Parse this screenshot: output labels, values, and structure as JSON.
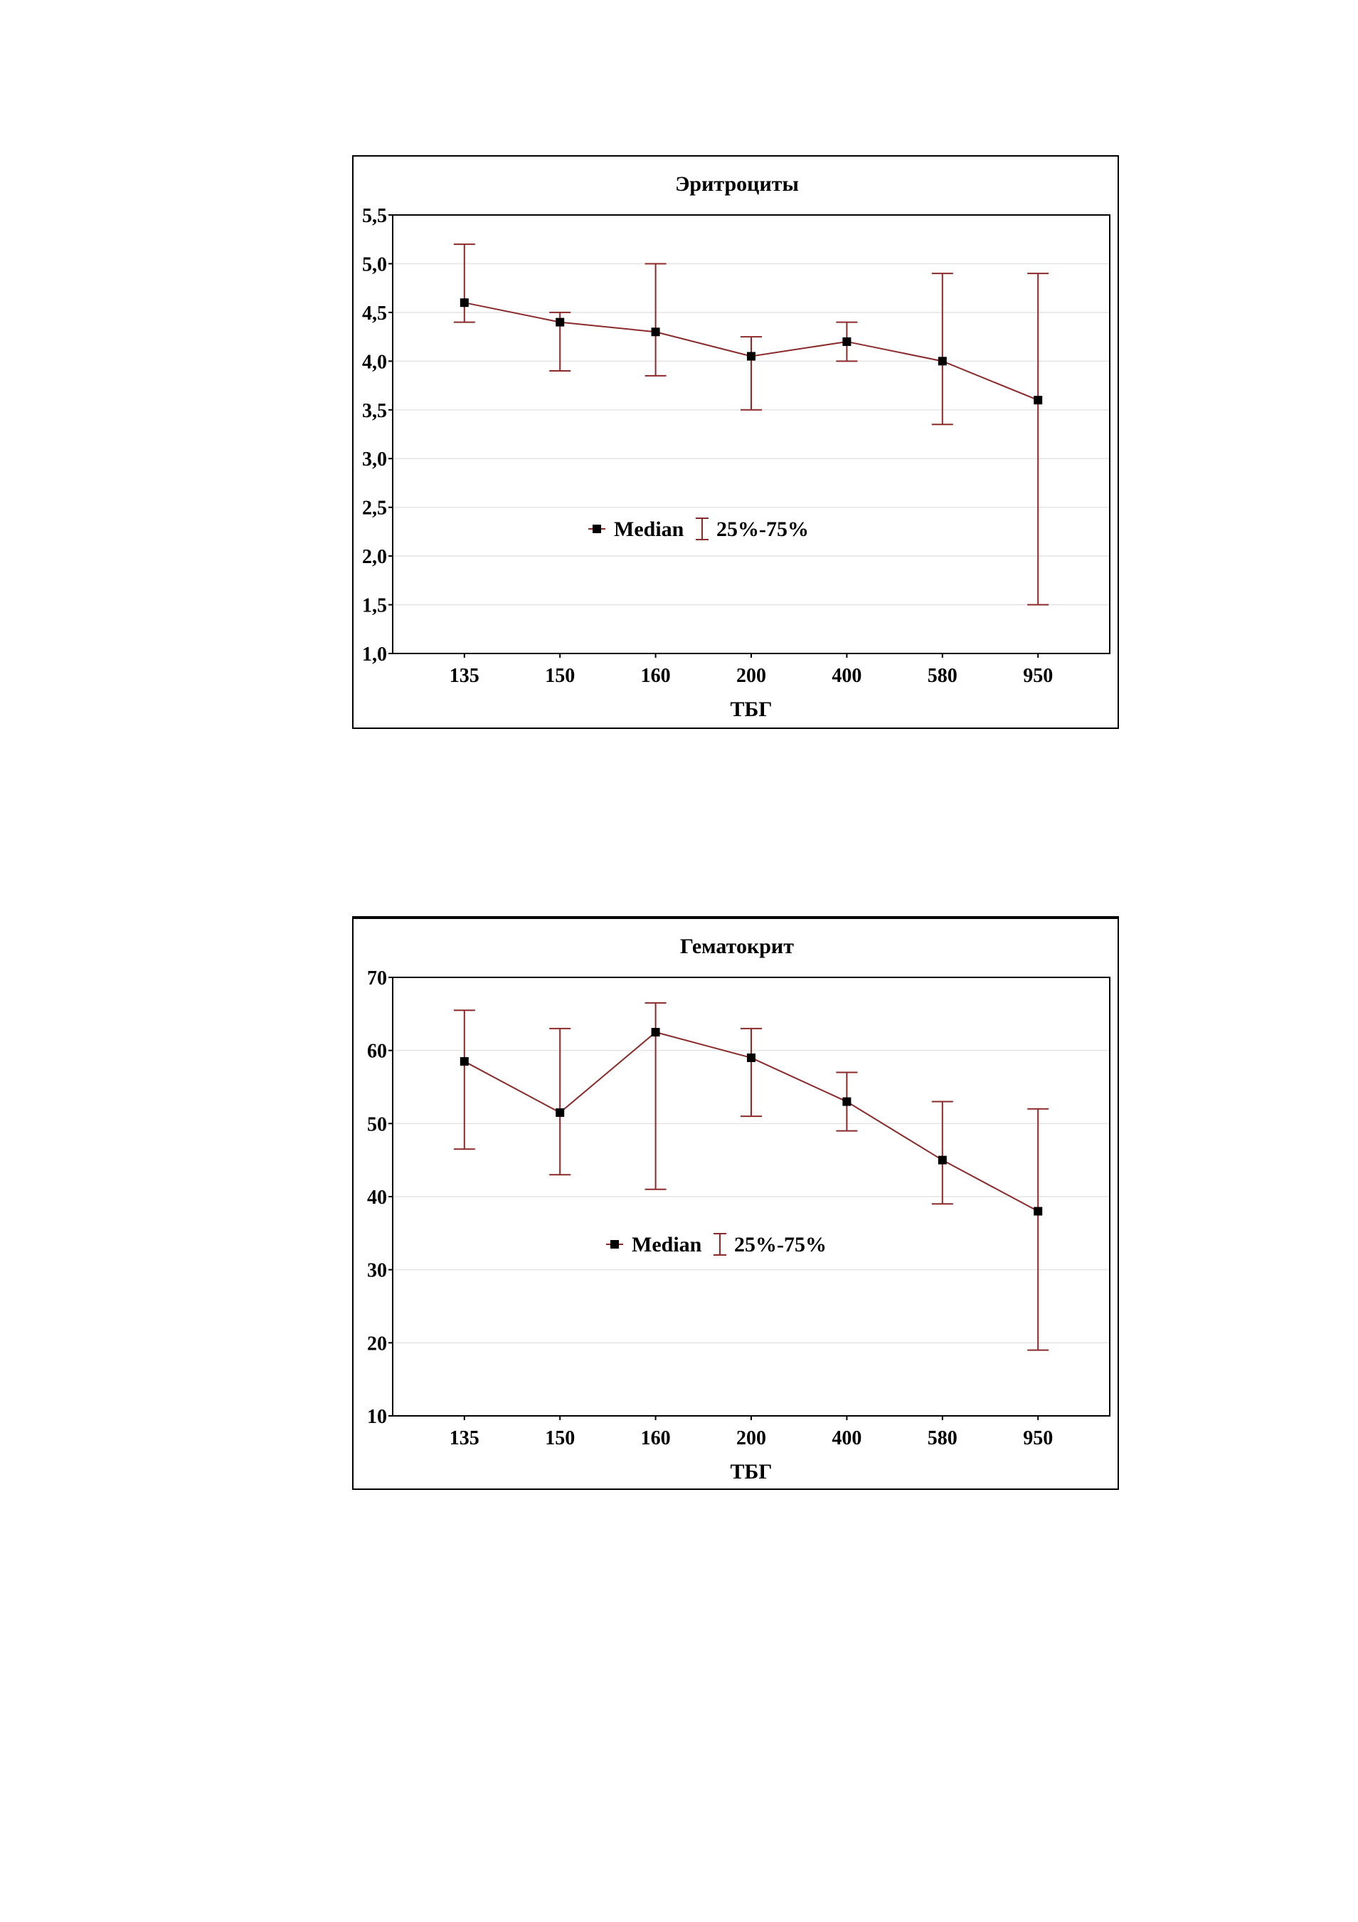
{
  "colors": {
    "line": "#8b2a2a",
    "marker": "#000000",
    "grid": "#e4e4e4",
    "axis": "#000000"
  },
  "chart_data": [
    {
      "type": "line",
      "title": "Эритроциты",
      "xlabel": "ТБГ",
      "ylabel": "",
      "categories": [
        "135",
        "150",
        "160",
        "200",
        "400",
        "580",
        "950"
      ],
      "ylim": [
        1.0,
        5.5
      ],
      "y_ticks": [
        1.0,
        1.5,
        2.0,
        2.5,
        3.0,
        3.5,
        4.0,
        4.5,
        5.0,
        5.5
      ],
      "y_tick_labels": [
        "1,0",
        "1,5",
        "2,0",
        "2,5",
        "3,0",
        "3,5",
        "4,0",
        "4,5",
        "5,0",
        "5,5"
      ],
      "grid": true,
      "legend_position": "center",
      "legend": {
        "median_label": "Median",
        "range_label": "25%-75%"
      },
      "series": [
        {
          "name": "Median",
          "values": [
            4.6,
            4.4,
            4.3,
            4.05,
            4.2,
            4.0,
            3.6
          ]
        },
        {
          "name": "25%-75%",
          "low": [
            4.4,
            3.9,
            3.85,
            3.5,
            4.0,
            3.35,
            1.5
          ],
          "high": [
            5.2,
            4.5,
            5.0,
            4.25,
            4.4,
            4.9,
            4.9
          ]
        }
      ]
    },
    {
      "type": "line",
      "title": "Гематокрит",
      "xlabel": "ТБГ",
      "ylabel": "",
      "categories": [
        "135",
        "150",
        "160",
        "200",
        "400",
        "580",
        "950"
      ],
      "ylim": [
        10,
        70
      ],
      "y_ticks": [
        10,
        20,
        30,
        40,
        50,
        60,
        70
      ],
      "y_tick_labels": [
        "10",
        "20",
        "30",
        "40",
        "50",
        "60",
        "70"
      ],
      "grid": true,
      "legend_position": "center",
      "legend": {
        "median_label": "Median",
        "range_label": "25%-75%"
      },
      "series": [
        {
          "name": "Median",
          "values": [
            58.5,
            51.5,
            62.5,
            59,
            53,
            45,
            38
          ]
        },
        {
          "name": "25%-75%",
          "low": [
            46.5,
            43,
            41,
            51,
            49,
            39,
            19
          ],
          "high": [
            65.5,
            63,
            66.5,
            63,
            57,
            53,
            52
          ]
        }
      ]
    }
  ]
}
